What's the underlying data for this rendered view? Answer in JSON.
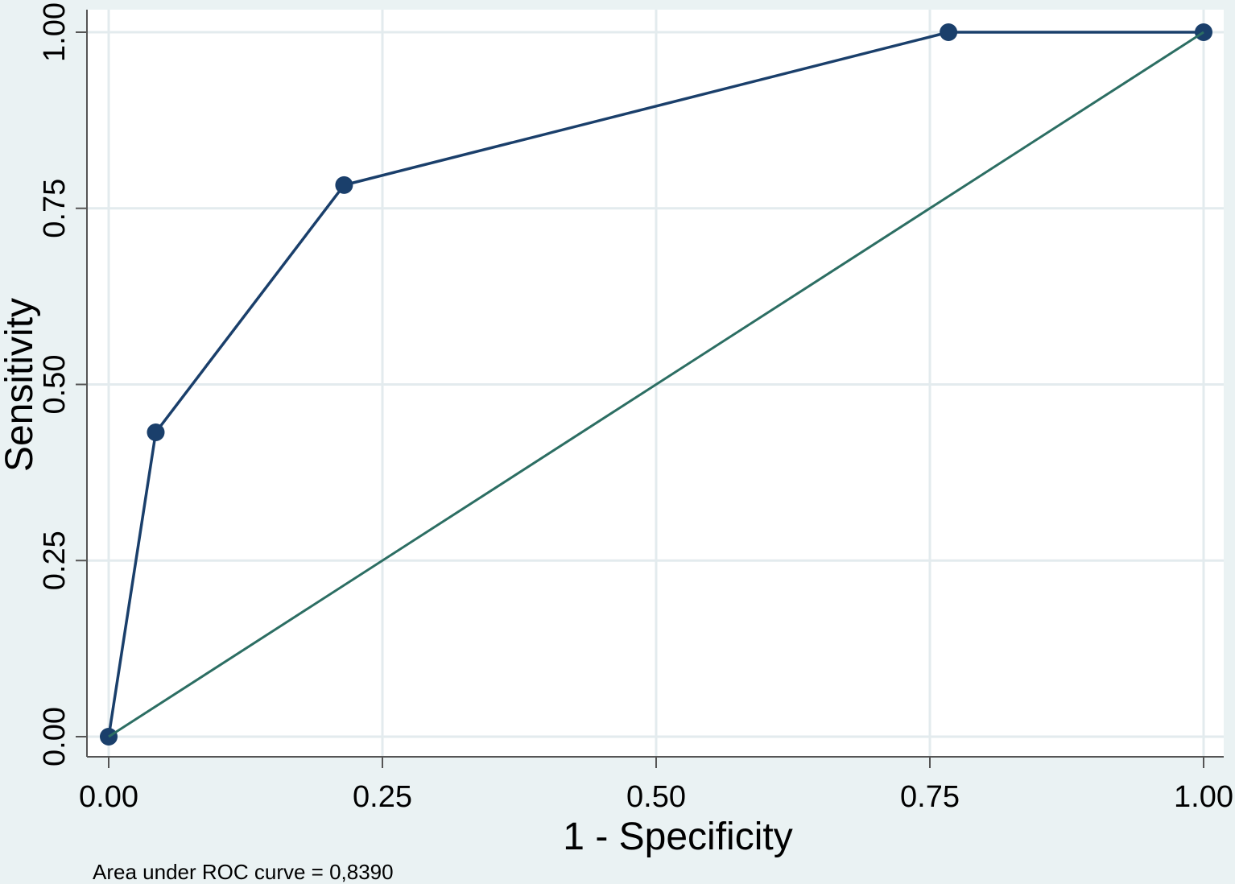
{
  "chart_data": {
    "type": "line",
    "xlabel": "1 - Specificity",
    "ylabel": "Sensitivity",
    "xlim": [
      0,
      1
    ],
    "ylim": [
      0,
      1
    ],
    "x_ticks": [
      "0.00",
      "0.25",
      "0.50",
      "0.75",
      "1.00"
    ],
    "y_ticks": [
      "0.00",
      "0.25",
      "0.50",
      "0.75",
      "1.00"
    ],
    "grid": true,
    "note": "Area under ROC curve = 0,8390",
    "series": [
      {
        "role": "roc-curve",
        "color": "#1a3f6b",
        "markers": true,
        "x": [
          0.0,
          0.043,
          0.215,
          0.767,
          1.0
        ],
        "y": [
          0.0,
          0.432,
          0.783,
          1.0,
          1.0
        ]
      },
      {
        "role": "reference-line",
        "color": "#2c6e63",
        "markers": false,
        "x": [
          0.0,
          1.0
        ],
        "y": [
          0.0,
          1.0
        ]
      }
    ],
    "colors": {
      "background": "#eaf2f3",
      "plot_area": "#ffffff",
      "grid": "#e3ebee",
      "axis": "#555555"
    }
  }
}
